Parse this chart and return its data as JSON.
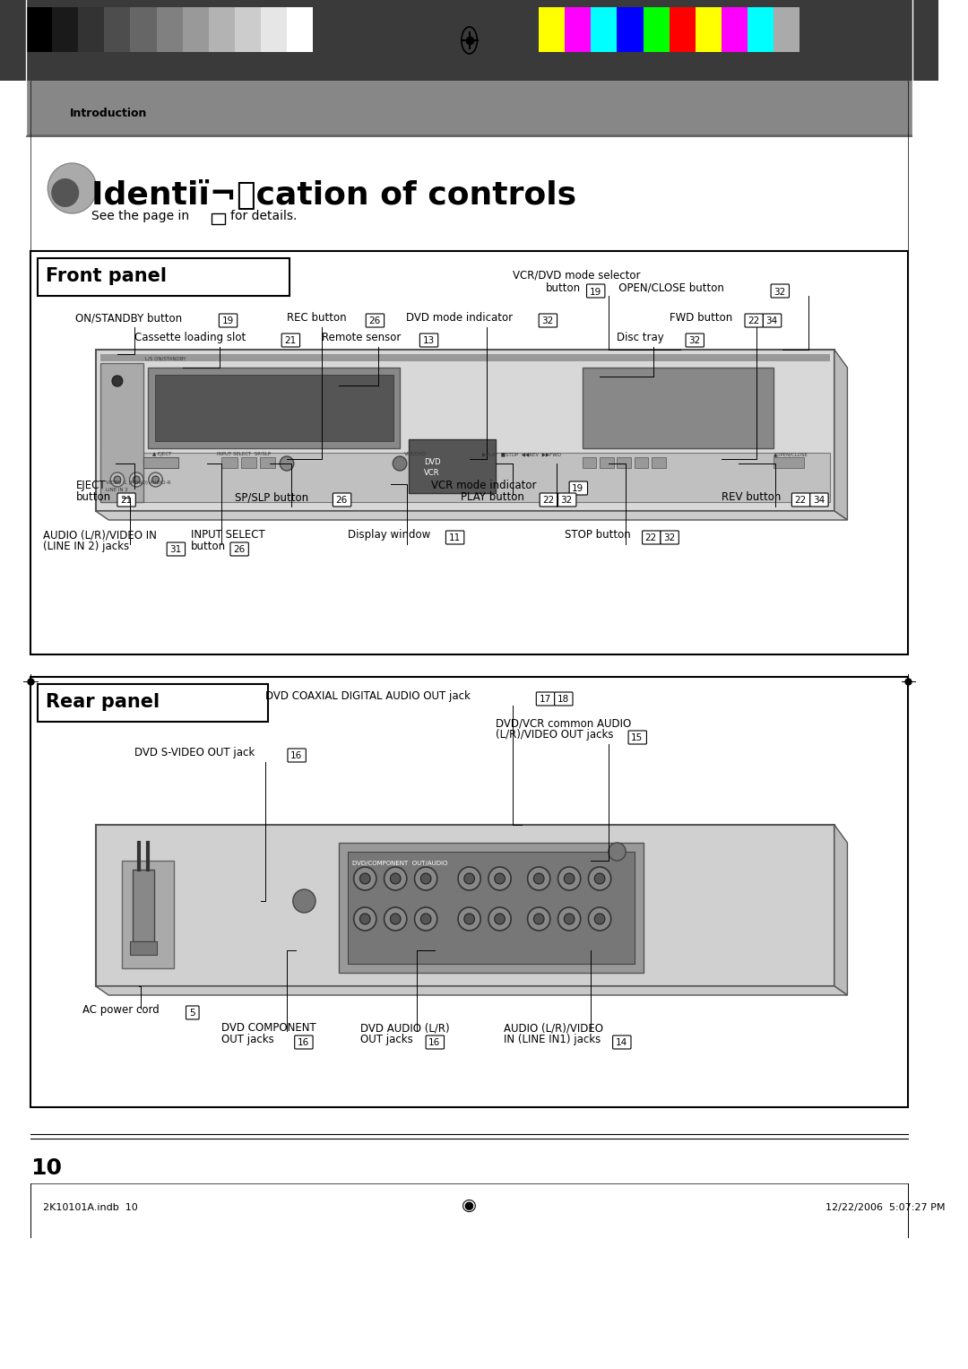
{
  "page_bg": "#ffffff",
  "header_bg_gradient": [
    "#888888",
    "#cccccc",
    "#ffffff"
  ],
  "header_label": "Introduction",
  "title": "Identiï¬cation of controls",
  "subtitle": "See the page in □ for details.",
  "front_panel_title": "Front panel",
  "rear_panel_title": "Rear panel",
  "footer_page": "10",
  "footer_left": "2K10101A.indb  10",
  "footer_right": "12/22/2006  5:07:27 PM",
  "front_labels": [
    "VCR/DVD mode selector",
    "button 19    OPEN/CLOSE button 32",
    "ON/STANDBY button 19",
    "REC button 26",
    "DVD mode indicator 32",
    "FWD button 22 34",
    "Cassette loading slot 21",
    "Remote sensor 13",
    "Disc tray 32",
    "EJECT",
    "button 21",
    "SP/SLP button 26",
    "VCR mode indicator 19",
    "REV button 22 34",
    "AUDIO (L/R)/VIDEO IN",
    "(LINE IN 2) jacks 31",
    "INPUT SELECT",
    "button 26",
    "Display window 11",
    "STOP button 22 32",
    "PLAY button 22 32"
  ],
  "rear_labels": [
    "DVD COAXIAL DIGITAL AUDIO OUT jack 17 18",
    "DVD/VCR common AUDIO",
    "(L/R)/VIDEO OUT jacks 15",
    "DVD S-VIDEO OUT jack 16",
    "AC power cord 5",
    "DVD COMPONENT",
    "OUT jacks 16",
    "DVD AUDIO (L/R)",
    "OUT jacks 16",
    "AUDIO (L/R)/VIDEO",
    "IN (LINE IN1) jacks 14"
  ],
  "bw_colors": [
    "#000000",
    "#1a1a1a",
    "#333333",
    "#4d4d4d",
    "#666666",
    "#808080",
    "#999999",
    "#b3b3b3",
    "#cccccc",
    "#e6e6e6",
    "#ffffff"
  ],
  "color_bars": [
    "#ffff00",
    "#ff00ff",
    "#00ffff",
    "#0000ff",
    "#00ff00",
    "#ff0000",
    "#ffff00",
    "#ff00ff",
    "#00ffff",
    "#aaaaaa"
  ]
}
